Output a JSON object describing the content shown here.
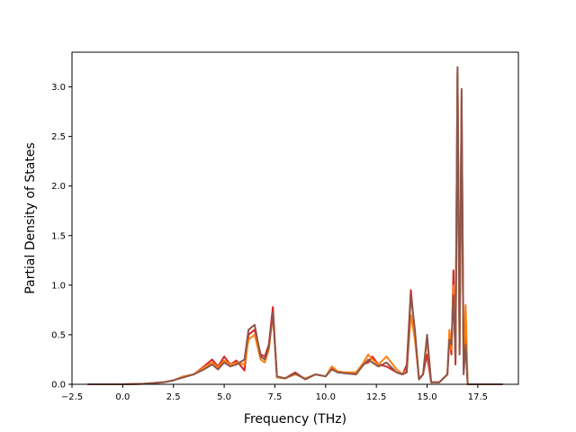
{
  "chart_data": {
    "type": "line",
    "title": "",
    "xlabel": "Frequency (THz)",
    "ylabel": "Partial Density of States",
    "xlim": [
      -2.5,
      19.5
    ],
    "ylim": [
      0.0,
      3.35
    ],
    "xticks": [
      -2.5,
      0.0,
      2.5,
      5.0,
      7.5,
      10.0,
      12.5,
      15.0,
      17.5
    ],
    "xtick_labels": [
      "−2.5",
      "0.0",
      "2.5",
      "5.0",
      "7.5",
      "10.0",
      "12.5",
      "15.0",
      "17.5"
    ],
    "yticks": [
      0.0,
      0.5,
      1.0,
      1.5,
      2.0,
      2.5,
      3.0
    ],
    "ytick_labels": [
      "0.0",
      "0.5",
      "1.0",
      "1.5",
      "2.0",
      "2.5",
      "3.0"
    ],
    "grid": false,
    "legend": "none",
    "colors": [
      "#d62728",
      "#ff7f0e",
      "#8c564b"
    ],
    "series": [
      {
        "color": "#d62728",
        "x": [
          -1.7,
          0.0,
          1.0,
          2.0,
          2.5,
          3.0,
          3.5,
          4.0,
          4.4,
          4.7,
          5.0,
          5.3,
          5.6,
          6.0,
          6.2,
          6.5,
          6.8,
          7.0,
          7.2,
          7.4,
          7.6,
          8.0,
          8.5,
          9.0,
          9.5,
          10.0,
          10.3,
          10.6,
          11.0,
          11.5,
          11.8,
          12.1,
          12.3,
          12.6,
          13.0,
          13.5,
          13.8,
          14.0,
          14.2,
          14.4,
          14.6,
          14.8,
          15.0,
          15.2,
          15.6,
          16.0,
          16.1,
          16.2,
          16.3,
          16.4,
          16.5,
          16.6,
          16.7,
          16.8,
          16.9,
          17.0,
          17.3,
          18.0,
          18.7
        ],
        "y": [
          0.0,
          0.0,
          0.005,
          0.02,
          0.04,
          0.08,
          0.1,
          0.18,
          0.25,
          0.18,
          0.28,
          0.2,
          0.24,
          0.14,
          0.5,
          0.55,
          0.3,
          0.28,
          0.4,
          0.78,
          0.07,
          0.06,
          0.12,
          0.05,
          0.1,
          0.08,
          0.16,
          0.12,
          0.12,
          0.1,
          0.2,
          0.22,
          0.28,
          0.2,
          0.18,
          0.12,
          0.1,
          0.2,
          0.95,
          0.5,
          0.05,
          0.1,
          0.3,
          0.02,
          0.02,
          0.1,
          0.5,
          0.3,
          1.15,
          0.2,
          3.15,
          0.35,
          2.9,
          0.15,
          0.5,
          0.0,
          0.0,
          0.0,
          0.0
        ]
      },
      {
        "color": "#ff7f0e",
        "x": [
          -1.7,
          0.0,
          1.0,
          2.0,
          2.5,
          3.0,
          3.5,
          4.0,
          4.4,
          4.7,
          5.0,
          5.3,
          5.6,
          6.0,
          6.2,
          6.5,
          6.8,
          7.0,
          7.2,
          7.4,
          7.6,
          8.0,
          8.5,
          9.0,
          9.5,
          10.0,
          10.3,
          10.6,
          11.0,
          11.5,
          11.8,
          12.1,
          12.3,
          12.6,
          13.0,
          13.5,
          13.8,
          14.0,
          14.2,
          14.4,
          14.6,
          14.8,
          15.0,
          15.2,
          15.6,
          16.0,
          16.1,
          16.2,
          16.3,
          16.4,
          16.5,
          16.6,
          16.7,
          16.8,
          16.9,
          17.0,
          17.3,
          18.0,
          18.7
        ],
        "y": [
          0.0,
          0.0,
          0.005,
          0.02,
          0.04,
          0.08,
          0.1,
          0.17,
          0.22,
          0.17,
          0.24,
          0.2,
          0.22,
          0.2,
          0.45,
          0.5,
          0.25,
          0.22,
          0.35,
          0.7,
          0.07,
          0.06,
          0.1,
          0.06,
          0.1,
          0.08,
          0.18,
          0.13,
          0.12,
          0.12,
          0.2,
          0.3,
          0.25,
          0.2,
          0.28,
          0.15,
          0.1,
          0.15,
          0.7,
          0.45,
          0.06,
          0.1,
          0.45,
          0.02,
          0.02,
          0.1,
          0.55,
          0.35,
          1.0,
          0.3,
          3.1,
          0.4,
          2.4,
          0.2,
          0.8,
          0.0,
          0.0,
          0.0,
          0.0
        ]
      },
      {
        "color": "#8c564b",
        "x": [
          -1.7,
          0.0,
          1.0,
          2.0,
          2.5,
          3.0,
          3.5,
          4.0,
          4.4,
          4.7,
          5.0,
          5.3,
          5.6,
          6.0,
          6.2,
          6.5,
          6.8,
          7.0,
          7.2,
          7.4,
          7.6,
          8.0,
          8.5,
          9.0,
          9.5,
          10.0,
          10.3,
          10.6,
          11.0,
          11.5,
          11.8,
          12.1,
          12.3,
          12.6,
          13.0,
          13.5,
          13.8,
          14.0,
          14.2,
          14.4,
          14.6,
          14.8,
          15.0,
          15.2,
          15.6,
          16.0,
          16.1,
          16.2,
          16.3,
          16.4,
          16.5,
          16.6,
          16.7,
          16.8,
          16.9,
          17.0,
          17.3,
          18.0,
          18.7
        ],
        "y": [
          0.0,
          0.0,
          0.005,
          0.02,
          0.04,
          0.07,
          0.1,
          0.15,
          0.2,
          0.15,
          0.22,
          0.18,
          0.2,
          0.25,
          0.55,
          0.6,
          0.28,
          0.25,
          0.38,
          0.72,
          0.08,
          0.06,
          0.11,
          0.05,
          0.1,
          0.08,
          0.15,
          0.12,
          0.11,
          0.1,
          0.18,
          0.25,
          0.22,
          0.18,
          0.22,
          0.12,
          0.1,
          0.12,
          0.9,
          0.55,
          0.05,
          0.1,
          0.5,
          0.02,
          0.02,
          0.1,
          0.45,
          0.4,
          0.9,
          0.25,
          3.2,
          0.3,
          2.98,
          0.1,
          0.4,
          0.0,
          0.0,
          0.0,
          0.0
        ]
      }
    ]
  }
}
